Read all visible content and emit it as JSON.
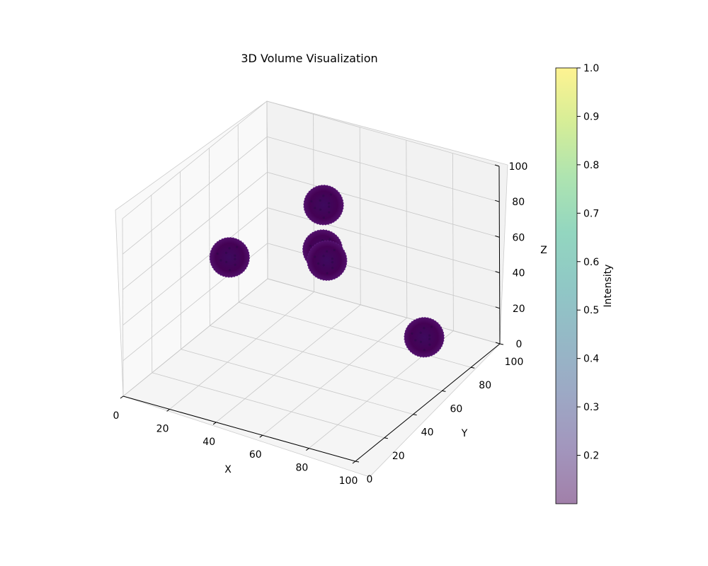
{
  "chart_data": {
    "type": "scatter3d",
    "title": "3D Volume Visualization",
    "xlabel": "X",
    "ylabel": "Y",
    "zlabel": "Z",
    "xlim": [
      0,
      100
    ],
    "ylim": [
      0,
      100
    ],
    "zlim": [
      0,
      100
    ],
    "xticks": [
      "0",
      "20",
      "40",
      "60",
      "80",
      "100"
    ],
    "yticks": [
      "0",
      "20",
      "40",
      "60",
      "80",
      "100"
    ],
    "zticks": [
      "0",
      "20",
      "40",
      "60",
      "80",
      "100"
    ],
    "grid": true,
    "blob_color": "#440154",
    "blobs": [
      {
        "x": 18,
        "y": 45,
        "z": 55
      },
      {
        "x": 38,
        "y": 78,
        "z": 70
      },
      {
        "x": 30,
        "y": 90,
        "z": 34
      },
      {
        "x": 35,
        "y": 85,
        "z": 33
      },
      {
        "x": 83,
        "y": 75,
        "z": 14
      }
    ],
    "colorbar": {
      "label": "Intensity",
      "range": [
        0.1,
        1.0
      ],
      "ticks": [
        "0.2",
        "0.3",
        "0.4",
        "0.5",
        "0.6",
        "0.7",
        "0.8",
        "0.9",
        "1.0"
      ],
      "tick_values": [
        0.2,
        0.3,
        0.4,
        0.5,
        0.6,
        0.7,
        0.8,
        0.9,
        1.0
      ],
      "colormap": "viridis",
      "alpha": 0.5
    }
  }
}
